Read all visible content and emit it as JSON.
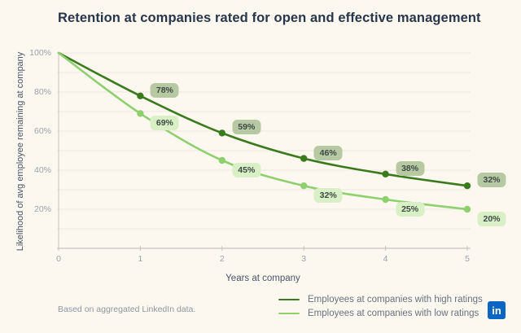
{
  "chart_data": {
    "type": "line",
    "title": "Retention at companies rated for open and effective management",
    "xlabel": "Years at company",
    "ylabel": "Likelihood of avg employee remaining at company",
    "footnote": "Based on aggregated LinkedIn data.",
    "x": [
      0,
      1,
      2,
      3,
      4,
      5
    ],
    "xlim": [
      0,
      5
    ],
    "ylim": [
      0,
      100
    ],
    "ytick_percent": [
      100,
      80,
      60,
      40,
      20
    ],
    "grid_step_percent": 10,
    "grid": "horizontal-only",
    "legend_position": "bottom-right",
    "series": [
      {
        "name": "Employees at companies with high ratings",
        "values": [
          100,
          78,
          59,
          46,
          38,
          32
        ],
        "point_labels": [
          "",
          "78%",
          "59%",
          "46%",
          "38%",
          "32%"
        ],
        "color": "#3c7a1e",
        "badge_bg": "#b7c9a2",
        "label_position": "above-right"
      },
      {
        "name": "Employees at companies with low ratings",
        "values": [
          100,
          69,
          45,
          32,
          25,
          20
        ],
        "point_labels": [
          "",
          "69%",
          "45%",
          "32%",
          "25%",
          "20%"
        ],
        "color": "#8fd06e",
        "badge_bg": "#d9efc5",
        "label_position": "below-right"
      }
    ]
  },
  "logo": {
    "text": "in"
  },
  "colors": {
    "background": "#fcf8f0",
    "title_text": "#27364b",
    "axis_title_text": "#4a5568",
    "axis_tick_text": "#9aa2ab",
    "muted_text": "#8d97a1",
    "legend_text": "#68727c",
    "axis_line": "#c6c4bd",
    "gridline": "#ece8df",
    "badge_text": "#3d4a44",
    "linkedin_blue": "#0a66c2"
  }
}
